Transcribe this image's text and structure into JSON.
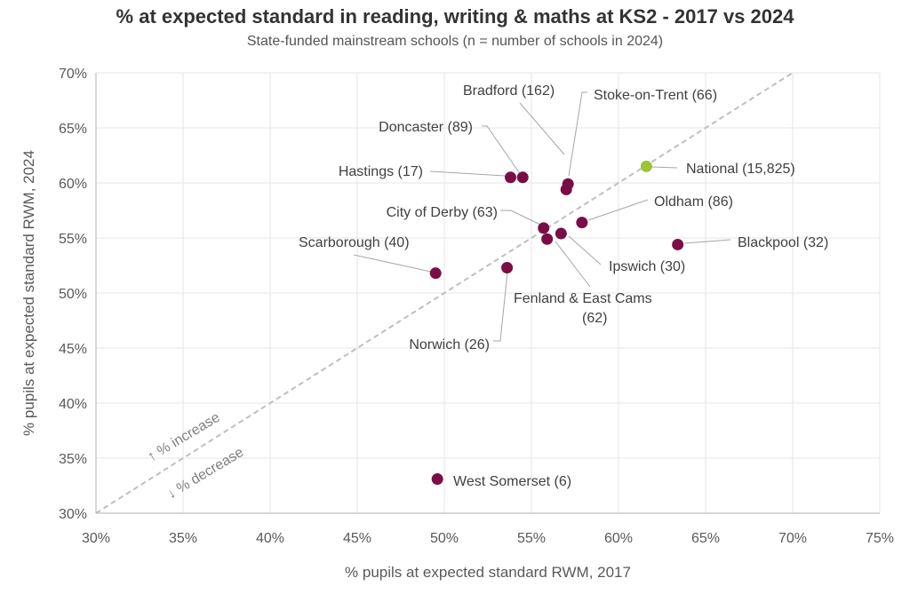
{
  "chart_data": {
    "type": "scatter",
    "title": "% at expected standard in reading, writing & maths at KS2 - 2017 vs 2024",
    "subtitle": "State-funded mainstream schools (n = number of schools in 2024)",
    "xlabel": "% pupils at expected standard RWM, 2017",
    "ylabel": "% pupils at expected standard RWM, 2024",
    "xlim": [
      30,
      75
    ],
    "ylim": [
      30,
      70
    ],
    "x_ticks": [
      "30%",
      "35%",
      "40%",
      "45%",
      "50%",
      "55%",
      "60%",
      "65%",
      "70%",
      "75%"
    ],
    "y_ticks": [
      "30%",
      "35%",
      "40%",
      "45%",
      "50%",
      "55%",
      "60%",
      "65%",
      "70%"
    ],
    "grid": true,
    "reference_line": "y = x",
    "annotations": [
      "↑ % increase",
      "↓ % decrease"
    ],
    "colors": {
      "point": "#7b0d45",
      "national": "#9dc43a",
      "reference": "#bfbfbf"
    },
    "points": [
      {
        "label": "Bradford (162)",
        "x": 57.0,
        "y": 59.4
      },
      {
        "label": "Stoke-on-Trent (66)",
        "x": 57.1,
        "y": 59.9
      },
      {
        "label": "Doncaster (89)",
        "x": 54.5,
        "y": 60.5
      },
      {
        "label": "Hastings (17)",
        "x": 53.8,
        "y": 60.5
      },
      {
        "label": "National (15,825)",
        "x": 61.6,
        "y": 61.5,
        "national": true
      },
      {
        "label": "Oldham (86)",
        "x": 57.9,
        "y": 56.4
      },
      {
        "label": "City of Derby (63)",
        "x": 55.7,
        "y": 55.9
      },
      {
        "label": "Blackpool (32)",
        "x": 63.4,
        "y": 54.4
      },
      {
        "label": "Ipswich (30)",
        "x": 56.7,
        "y": 55.4
      },
      {
        "label": "Fenland & East Cams",
        "label2": "(62)",
        "x": 55.9,
        "y": 54.9
      },
      {
        "label": "Scarborough (40)",
        "x": 49.5,
        "y": 51.8
      },
      {
        "label": "Norwich (26)",
        "x": 53.6,
        "y": 52.3
      },
      {
        "label": "West Somerset (6)",
        "x": 49.6,
        "y": 33.1
      }
    ]
  }
}
